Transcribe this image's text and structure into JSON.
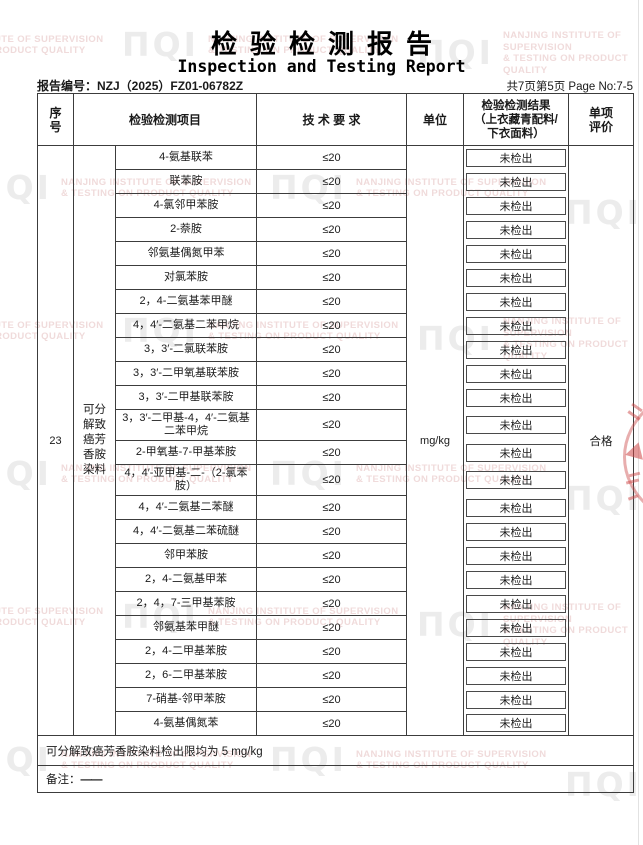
{
  "header": {
    "title_cn": "检验检测报告",
    "title_en": "Inspection and Testing Report",
    "report_no": "报告编号：NZJ（2025）FZ01-06782Z",
    "page_info": "共7页第5页 Page No:7-5"
  },
  "watermark": {
    "logo": "ΠQΙ",
    "line1": "NANJING INSTITUTE OF SUPERVISION",
    "line2": "& TESTING ON PRODUCT QUALITY"
  },
  "table": {
    "columns": {
      "seq": [
        "序",
        "号"
      ],
      "item": "检验检测项目",
      "tech": "技 术 要 求",
      "unit": "单位",
      "result": [
        "检验检测结果",
        "（上衣藏青配料/",
        "下衣面料）"
      ],
      "eval": [
        "单项",
        "评价"
      ]
    },
    "seq_no": "23",
    "group_lines": [
      "可分",
      "解致",
      "癌芳",
      "香胺",
      "染料"
    ],
    "unit_value": "mg/kg",
    "eval_value": "合格",
    "rows": [
      {
        "item": "4-氨基联苯",
        "req": "≤20",
        "result": "未检出"
      },
      {
        "item": "联苯胺",
        "req": "≤20",
        "result": "未检出"
      },
      {
        "item": "4-氯邻甲苯胺",
        "req": "≤20",
        "result": "未检出"
      },
      {
        "item": "2-萘胺",
        "req": "≤20",
        "result": "未检出"
      },
      {
        "item": "邻氨基偶氮甲苯",
        "req": "≤20",
        "result": "未检出"
      },
      {
        "item": "对氯苯胺",
        "req": "≤20",
        "result": "未检出"
      },
      {
        "item": "2，4-二氨基苯甲醚",
        "req": "≤20",
        "result": "未检出"
      },
      {
        "item": "4，4′-二氨基二苯甲烷",
        "req": "≤20",
        "result": "未检出"
      },
      {
        "item": "3，3′-二氯联苯胺",
        "req": "≤20",
        "result": "未检出"
      },
      {
        "item": "3，3′-二甲氧基联苯胺",
        "req": "≤20",
        "result": "未检出"
      },
      {
        "item": "3，3′-二甲基联苯胺",
        "req": "≤20",
        "result": "未检出"
      },
      {
        "item": "3，3′-二甲基-4，4′-二氨基二苯甲烷",
        "req": "≤20",
        "result": "未检出"
      },
      {
        "item": "2-甲氧基-7-甲基苯胺",
        "req": "≤20",
        "result": "未检出"
      },
      {
        "item": "4，4′-亚甲基-二-（2-氯苯胺）",
        "req": "≤20",
        "result": "未检出"
      },
      {
        "item": "4，4′-二氨基二苯醚",
        "req": "≤20",
        "result": "未检出"
      },
      {
        "item": "4，4′-二氨基二苯硫醚",
        "req": "≤20",
        "result": "未检出"
      },
      {
        "item": "邻甲苯胺",
        "req": "≤20",
        "result": "未检出"
      },
      {
        "item": "2，4-二氨基甲苯",
        "req": "≤20",
        "result": "未检出"
      },
      {
        "item": "2，4，7-三甲基苯胺",
        "req": "≤20",
        "result": "未检出"
      },
      {
        "item": "邻氨基苯甲醚",
        "req": "≤20",
        "result": "未检出"
      },
      {
        "item": "2，4-二甲基苯胺",
        "req": "≤20",
        "result": "未检出"
      },
      {
        "item": "2，6-二甲基苯胺",
        "req": "≤20",
        "result": "未检出"
      },
      {
        "item": "7-硝基-邻甲苯胺",
        "req": "≤20",
        "result": "未检出"
      },
      {
        "item": "4-氨基偶氮苯",
        "req": "≤20",
        "result": "未检出"
      }
    ],
    "limit_note": "可分解致癌芳香胺染料检出限均为 5 mg/kg",
    "remark_label": "备注：",
    "remark_value": "——"
  }
}
